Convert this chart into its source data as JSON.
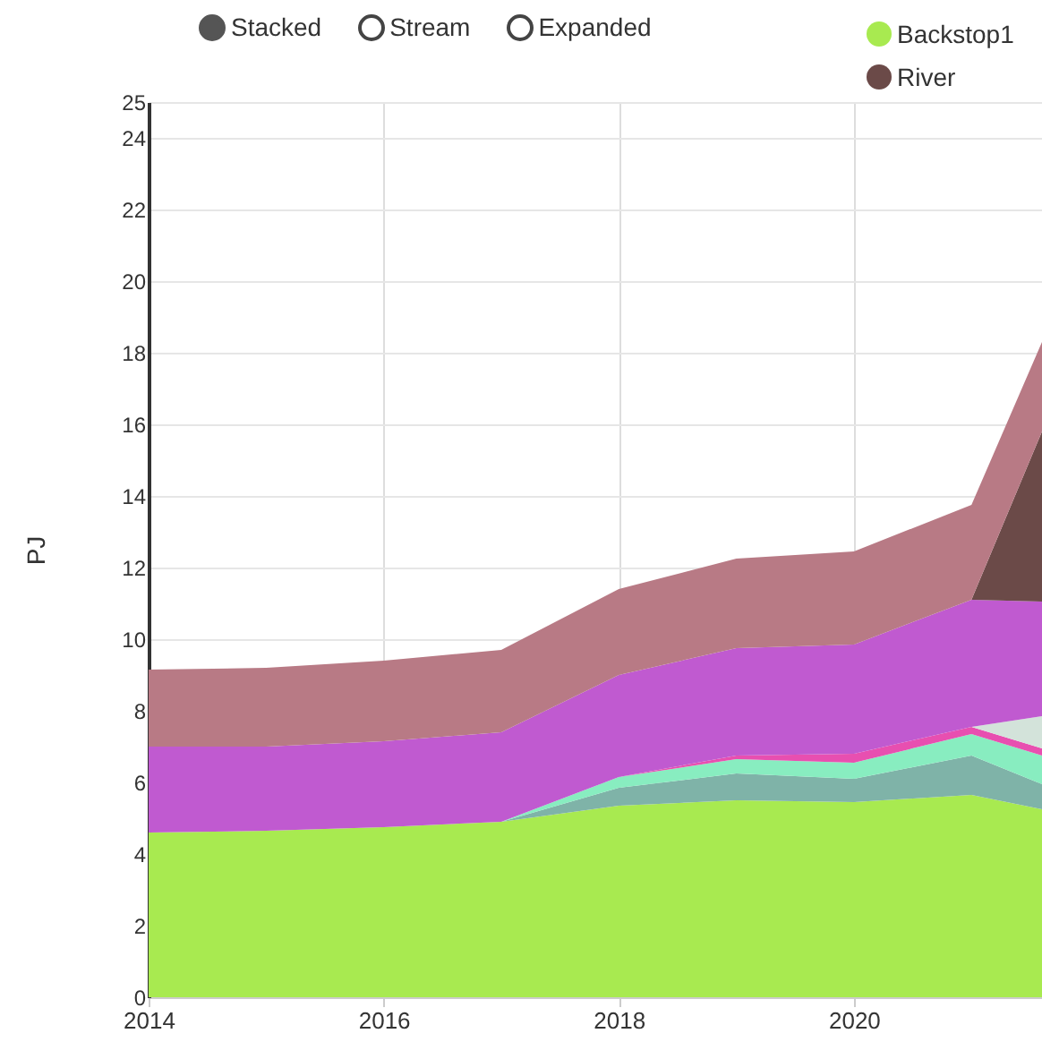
{
  "chart_data": {
    "type": "area",
    "stacked": true,
    "ylabel": "PJ",
    "annotations": [
      "Stacked",
      "Stream",
      "Expanded"
    ],
    "x": [
      2014,
      2015,
      2016,
      2017,
      2018,
      2019,
      2020,
      2021,
      2021.6
    ],
    "xlim": [
      2014,
      2021.6
    ],
    "xticks": [
      2014,
      2016,
      2018,
      2020
    ],
    "ylim": [
      0,
      25
    ],
    "yticks": [
      0,
      2,
      4,
      6,
      8,
      10,
      12,
      14,
      16,
      18,
      20,
      22,
      24,
      25
    ],
    "grid": true,
    "legend": "top right",
    "series": [
      {
        "name": "Backstop1",
        "color": "#a8ea50",
        "values": [
          4.6,
          4.65,
          4.75,
          4.9,
          5.35,
          5.5,
          5.45,
          5.65,
          5.25
        ]
      },
      {
        "color": "#7fb3a8",
        "values": [
          0,
          0,
          0,
          0,
          0.5,
          0.75,
          0.65,
          1.1,
          0.7
        ]
      },
      {
        "color": "#88edc0",
        "values": [
          0,
          0,
          0,
          0,
          0.3,
          0.4,
          0.45,
          0.6,
          0.8
        ]
      },
      {
        "color": "#e84fb0",
        "values": [
          0,
          0,
          0,
          0,
          0,
          0.1,
          0.25,
          0.2,
          0.2
        ]
      },
      {
        "color": "#d3e3da",
        "values": [
          0,
          0,
          0,
          0,
          0,
          0,
          0,
          0,
          0.9
        ]
      },
      {
        "color": "#c05ad0",
        "values": [
          2.4,
          2.35,
          2.4,
          2.5,
          2.85,
          3.0,
          3.05,
          3.55,
          3.2
        ]
      },
      {
        "name": "River",
        "color": "#6b4a48",
        "values": [
          0,
          0,
          0,
          0,
          0,
          0,
          0,
          0,
          4.75
        ]
      },
      {
        "color": "#b87a85",
        "values": [
          2.15,
          2.2,
          2.25,
          2.3,
          2.4,
          2.5,
          2.6,
          2.65,
          2.5
        ]
      }
    ]
  }
}
